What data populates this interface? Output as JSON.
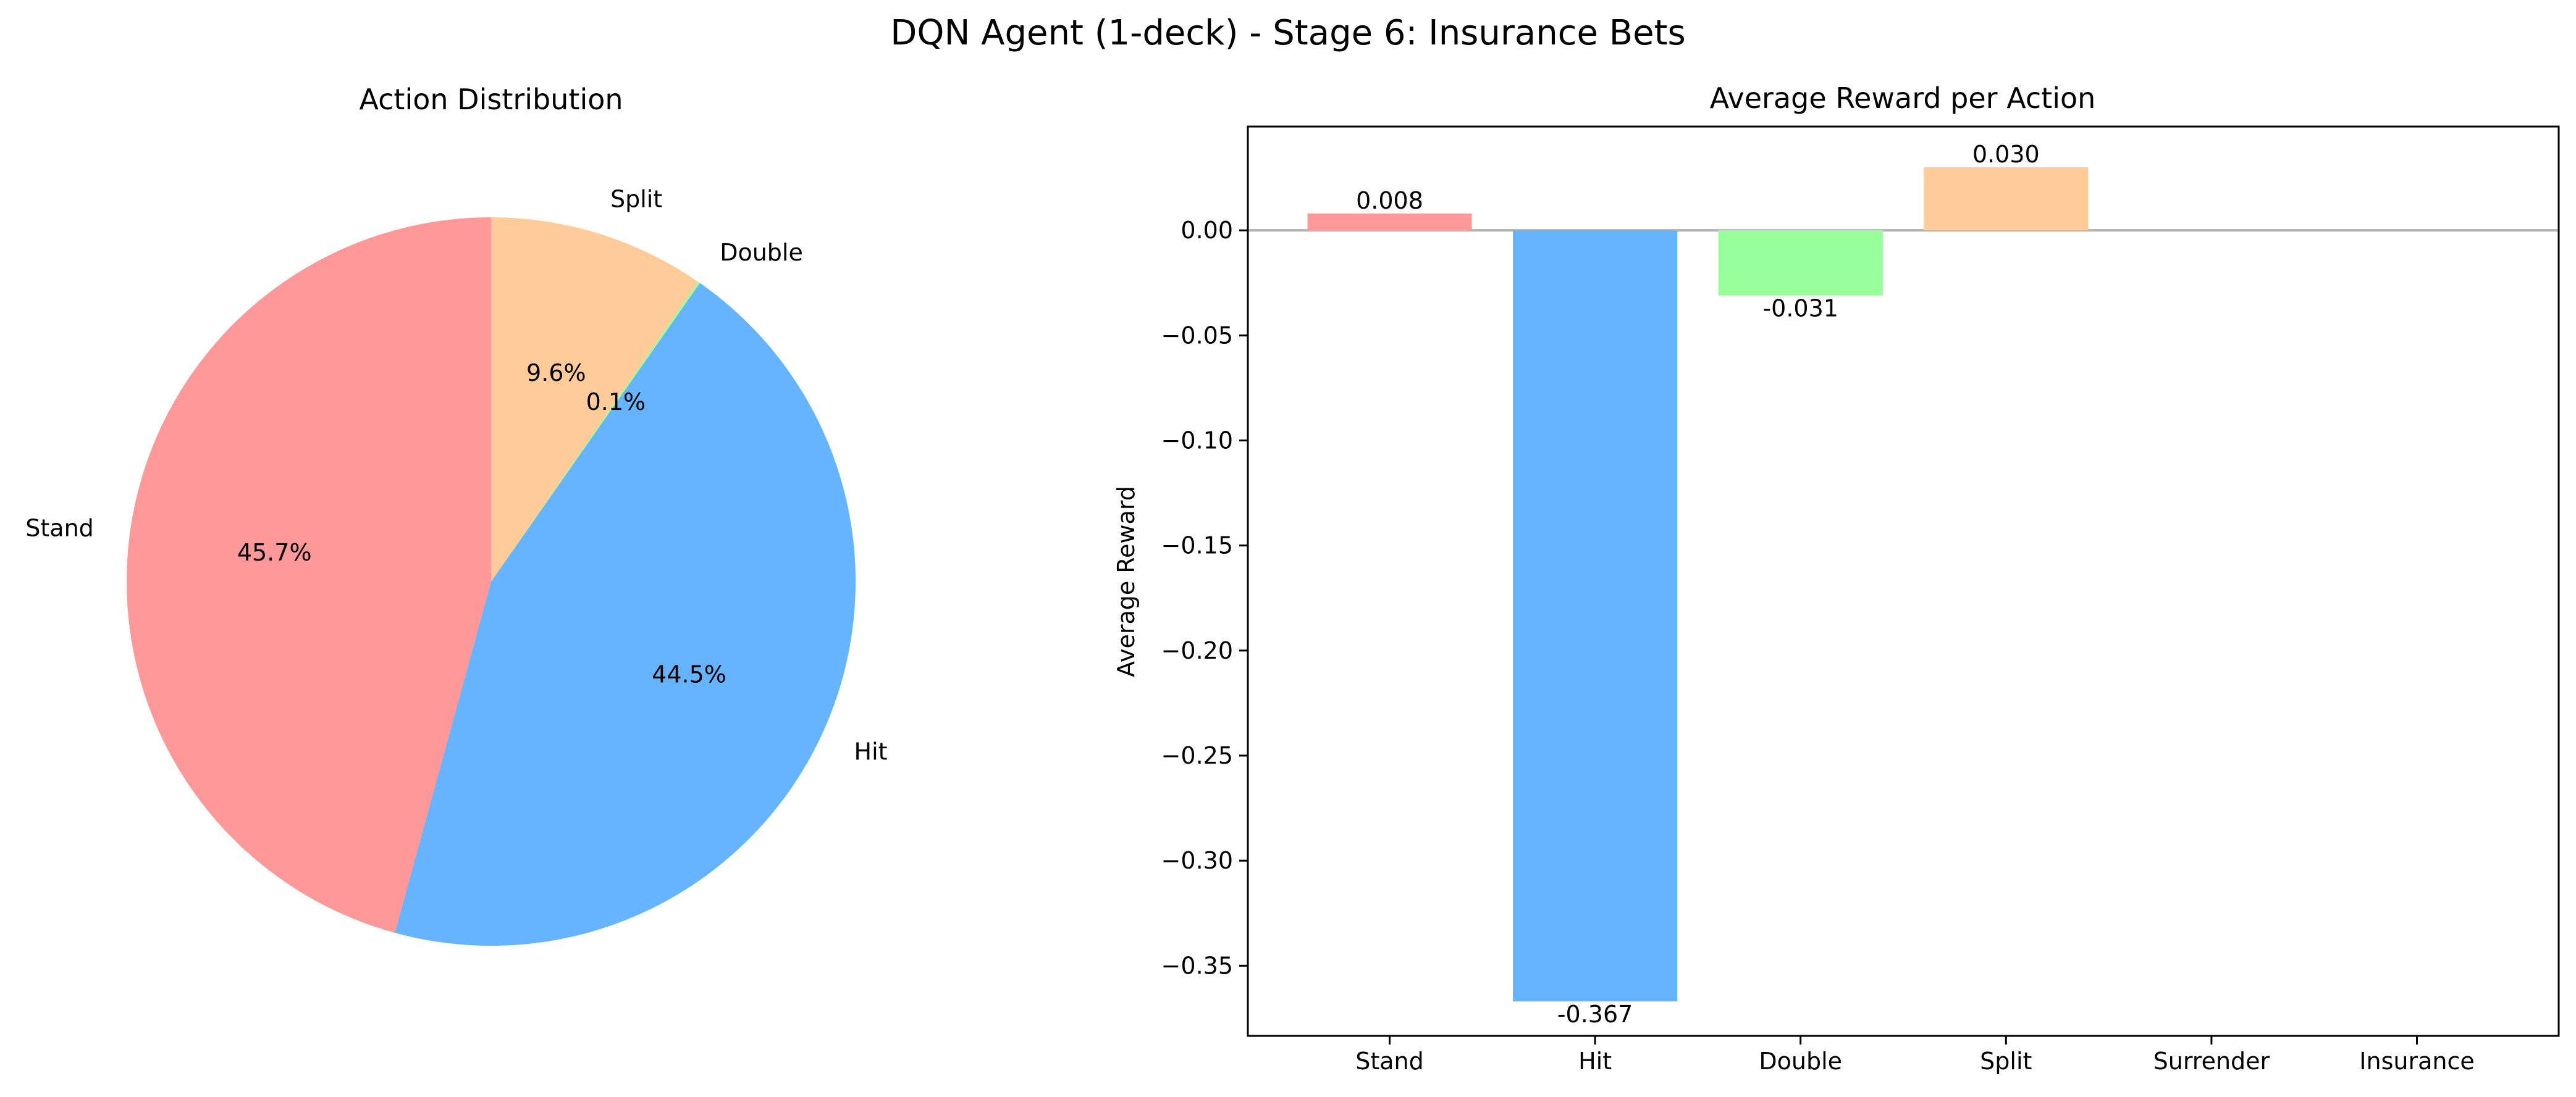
{
  "figure": {
    "suptitle": "DQN Agent (1-deck) - Stage 6: Insurance Bets"
  },
  "chart_data": [
    {
      "type": "pie",
      "title": "Action Distribution",
      "start_angle_deg": 90,
      "direction": "counterclockwise",
      "slices": [
        {
          "label": "Stand",
          "value": 45.7,
          "pct_label": "45.7%",
          "color": "#ff9999"
        },
        {
          "label": "Hit",
          "value": 44.5,
          "pct_label": "44.5%",
          "color": "#66b3ff"
        },
        {
          "label": "Double",
          "value": 0.1,
          "pct_label": "0.1%",
          "color": "#99ff99"
        },
        {
          "label": "Split",
          "value": 9.6,
          "pct_label": "9.6%",
          "color": "#ffcc99"
        }
      ]
    },
    {
      "type": "bar",
      "title": "Average Reward per Action",
      "xlabel": "",
      "ylabel": "Average Reward",
      "categories": [
        "Stand",
        "Hit",
        "Double",
        "Split",
        "Surrender",
        "Insurance"
      ],
      "values": [
        0.008,
        -0.367,
        -0.031,
        0.03,
        null,
        null
      ],
      "value_labels": [
        "0.008",
        "-0.367",
        "-0.031",
        "0.030",
        "",
        ""
      ],
      "colors": [
        "#ff9999",
        "#66b3ff",
        "#99ff99",
        "#ffcc99",
        "#ff99cc",
        "#c2c2f0"
      ],
      "ylim": [
        -0.3834,
        0.0494
      ],
      "yticks": [
        0.0,
        -0.05,
        -0.1,
        -0.15,
        -0.2,
        -0.25,
        -0.3,
        -0.35
      ],
      "ytick_labels": [
        "0.00",
        "−0.05",
        "−0.10",
        "−0.15",
        "−0.20",
        "−0.25",
        "−0.30",
        "−0.35"
      ],
      "zero_line": true,
      "zero_line_color": "#808080",
      "grid": false,
      "legend": false
    }
  ]
}
